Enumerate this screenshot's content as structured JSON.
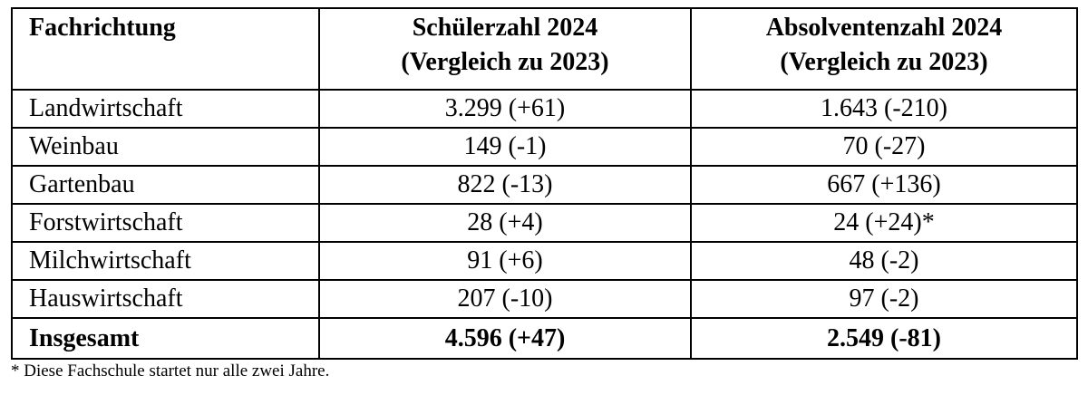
{
  "table": {
    "header": [
      [
        "Fachrichtung"
      ],
      [
        "Schülerzahl 2024",
        "(Vergleich zu 2023)"
      ],
      [
        "Absolventenzahl 2024",
        "(Vergleich zu 2023)"
      ]
    ],
    "rows": [
      [
        "Landwirtschaft",
        "3.299 (+61)",
        "1.643 (-210)"
      ],
      [
        "Weinbau",
        "149 (-1)",
        "70 (-27)"
      ],
      [
        "Gartenbau",
        "822 (-13)",
        "667 (+136)"
      ],
      [
        "Forstwirtschaft",
        "28 (+4)",
        "24 (+24)*"
      ],
      [
        "Milchwirtschaft",
        "91 (+6)",
        "48 (-2)"
      ],
      [
        "Hauswirtschaft",
        "207 (-10)",
        "97 (-2)"
      ]
    ],
    "total": [
      "Insgesamt",
      "4.596 (+47)",
      "2.549 (-81)"
    ]
  },
  "footnote": "* Diese Fachschule startet nur alle zwei Jahre."
}
